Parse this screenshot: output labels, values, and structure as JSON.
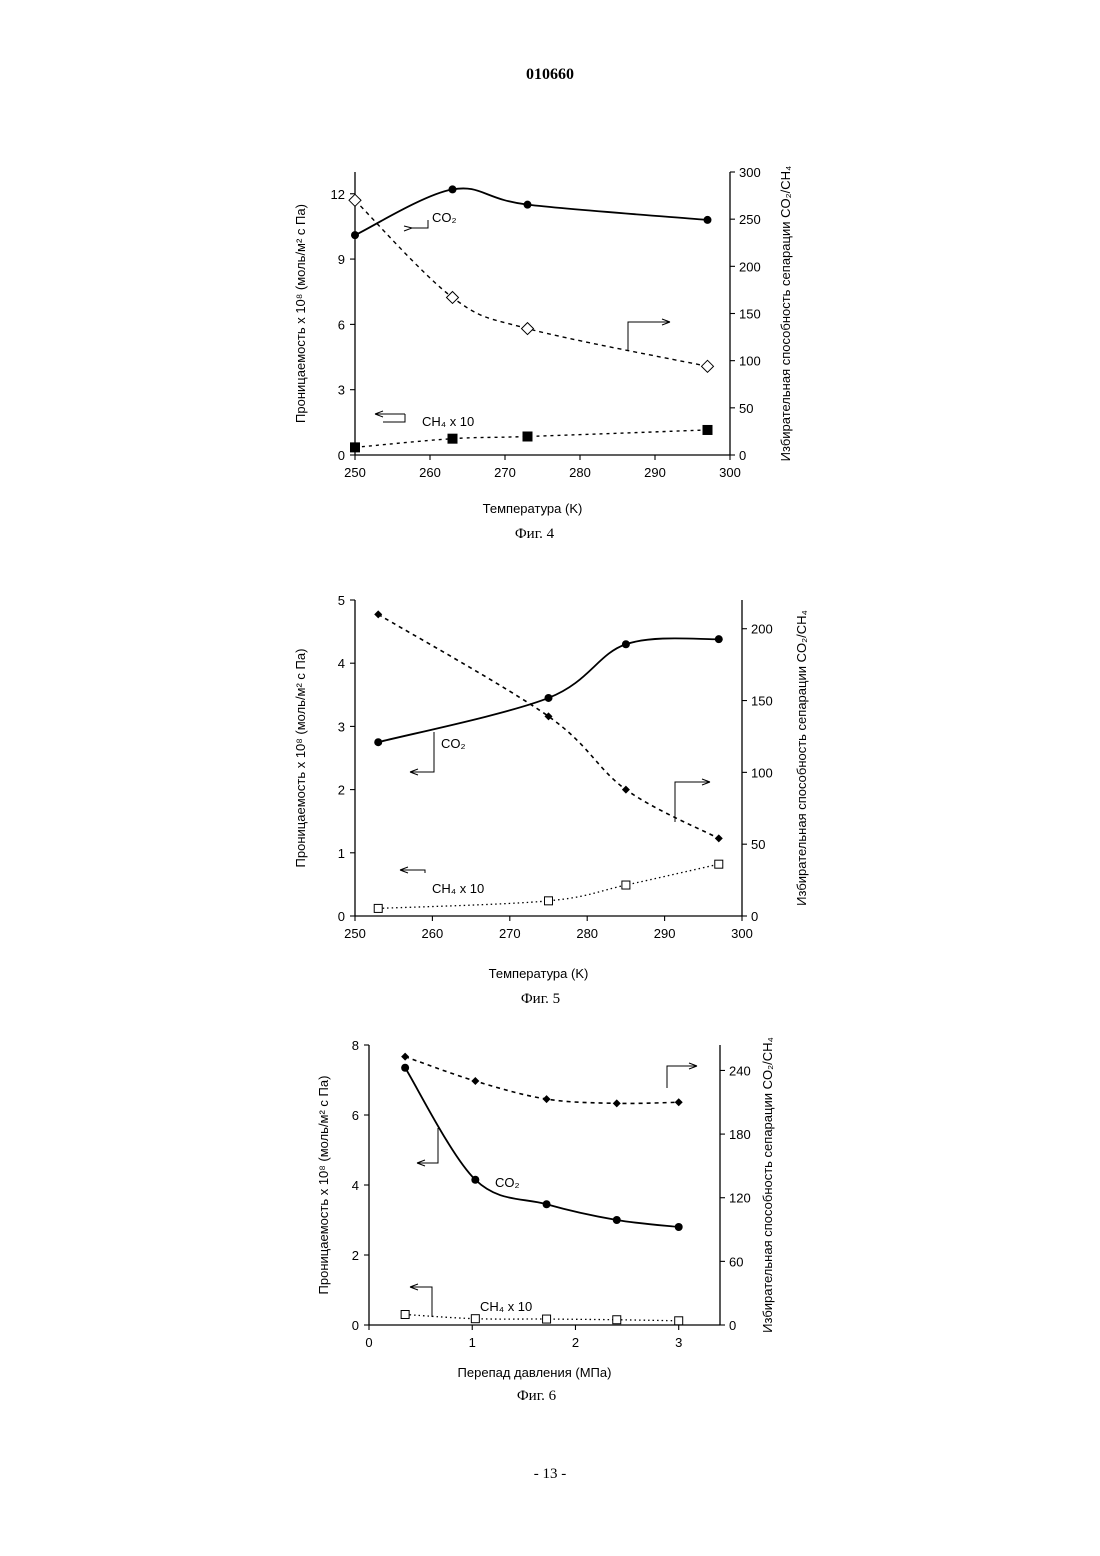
{
  "doc_number": "010660",
  "page_footer": "- 13 -",
  "chart_data": [
    {
      "type": "line",
      "caption": "Фиг. 4",
      "xlabel": "Температура (K)",
      "ylabel": "Проницаемость x 10⁸ (моль/м² с Па)",
      "y2label": "Избирательная способность сепарации CO₂/CH₄",
      "xlim": [
        250,
        300
      ],
      "ylim": [
        0,
        13
      ],
      "y2lim": [
        0,
        300
      ],
      "xticks": [
        "250",
        "260",
        "270",
        "280",
        "290",
        "300"
      ],
      "yticks": [
        "0",
        "3",
        "6",
        "9",
        "12"
      ],
      "y2ticks": [
        "0",
        "50",
        "100",
        "150",
        "200",
        "250",
        "300"
      ],
      "series": [
        {
          "name": "CO₂",
          "axis": "left",
          "x": [
            250,
            263,
            273,
            297
          ],
          "y": [
            10.1,
            12.2,
            11.5,
            10.8
          ]
        },
        {
          "name": "CH₄ x 10",
          "axis": "left",
          "x": [
            250,
            263,
            273,
            297
          ],
          "y": [
            0.35,
            0.75,
            0.85,
            1.15
          ]
        },
        {
          "axis": "right",
          "x": [
            250,
            263,
            273,
            297
          ],
          "y": [
            270,
            167,
            134,
            94
          ]
        }
      ]
    },
    {
      "type": "line",
      "caption": "Фиг. 5",
      "xlabel": "Температура (K)",
      "ylabel": "Проницаемость x 10⁸ (моль/м² с Па)",
      "y2label": "Избирательная способность сепарации CO₂/CH₄",
      "xlim": [
        250,
        300
      ],
      "ylim": [
        0,
        5
      ],
      "y2lim": [
        0,
        220
      ],
      "xticks": [
        "250",
        "260",
        "270",
        "280",
        "290",
        "300"
      ],
      "yticks": [
        "0",
        "1",
        "2",
        "3",
        "4",
        "5"
      ],
      "y2ticks": [
        "0",
        "50",
        "100",
        "150",
        "200"
      ],
      "series": [
        {
          "name": "CO₂",
          "axis": "left",
          "x": [
            253,
            275,
            285,
            297
          ],
          "y": [
            2.75,
            3.45,
            4.3,
            4.38
          ]
        },
        {
          "name": "CH₄ x 10",
          "axis": "left",
          "x": [
            253,
            275,
            285,
            297
          ],
          "y": [
            0.12,
            0.24,
            0.49,
            0.82
          ]
        },
        {
          "axis": "right",
          "x": [
            253,
            275,
            285,
            297
          ],
          "y": [
            210,
            139,
            88,
            54
          ]
        }
      ]
    },
    {
      "type": "line",
      "caption": "Фиг. 6",
      "xlabel": "Перепад давления (МПа)",
      "ylabel": "Проницаемость x 10⁸ (моль/м² с Па)",
      "y2label": "Избирательная способность сепарации CO₂/CH₄",
      "xlim": [
        0,
        3.4
      ],
      "ylim": [
        0,
        8
      ],
      "y2lim": [
        0,
        264
      ],
      "xticks": [
        "0",
        "1",
        "2",
        "3"
      ],
      "yticks": [
        "0",
        "2",
        "4",
        "6",
        "8"
      ],
      "y2ticks": [
        "0",
        "60",
        "120",
        "180",
        "240"
      ],
      "series": [
        {
          "name": "CO₂",
          "axis": "left",
          "x": [
            0.35,
            1.03,
            1.72,
            2.4,
            3.0
          ],
          "y": [
            7.35,
            4.15,
            3.45,
            3.0,
            2.8
          ]
        },
        {
          "name": "CH₄ x 10",
          "axis": "left",
          "x": [
            0.35,
            1.03,
            1.72,
            2.4,
            3.0
          ],
          "y": [
            0.3,
            0.18,
            0.17,
            0.15,
            0.12
          ]
        },
        {
          "axis": "right",
          "x": [
            0.35,
            1.03,
            1.72,
            2.4,
            3.0
          ],
          "y": [
            253,
            230,
            213,
            209,
            210
          ]
        }
      ]
    }
  ]
}
